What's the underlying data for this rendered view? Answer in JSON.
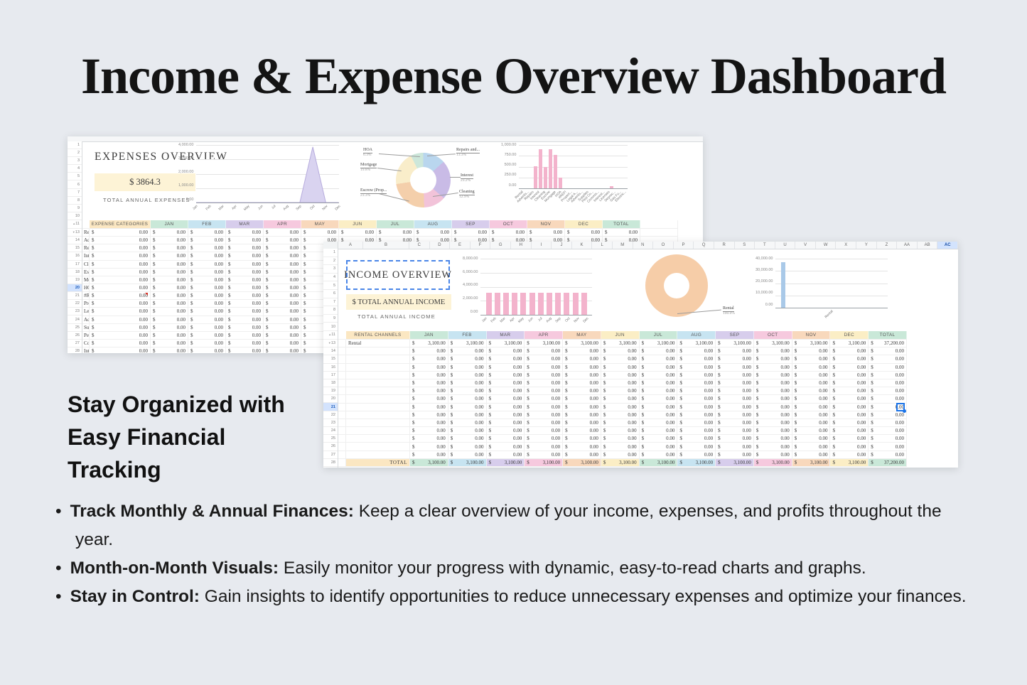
{
  "page": {
    "background": "#e7eaef",
    "title": "Income & Expense Overview Dashboard",
    "headline": "Stay Organized with\nEasy Financial\nTracking",
    "bullet_glyph": "•",
    "bullets": [
      {
        "lead": "Track Monthly & Annual Finances:",
        "body": " Keep a clear overview of your income, expenses, and profits throughout the year."
      },
      {
        "lead": "Month-on-Month Visuals:",
        "body": " Easily monitor your progress with dynamic, easy-to-read charts and graphs."
      },
      {
        "lead": "Stay in Control:",
        "body": " Gain insights to identify opportunities to reduce unnecessary expenses and optimize your finances."
      }
    ]
  },
  "icons": {
    "collapse_up": "▴",
    "collapse_down": "▾"
  },
  "colors": {
    "page_bg": "#e7eaef",
    "accent_blue": "#1a73e8",
    "selection_dash_blue": "#4a86e8",
    "highlight_row_bg": "#d3e3fd",
    "yellow_box_bg": "#fdf3d6",
    "comment_marker": "#d93025",
    "pink_bar": "#f3b3cc",
    "blue_bar": "#a9c9e8",
    "area_fill": "#d9d3f0",
    "area_stroke": "#b6abdd",
    "month_header_colors": [
      "#fbe7c2",
      "#c9e8d8",
      "#c7e4f1",
      "#d7cdec",
      "#f6c9de",
      "#f8d8bc",
      "#fbeec5",
      "#c9e8d8",
      "#c7e4f1",
      "#d7cdec",
      "#f6c9de",
      "#f8d8bc",
      "#fbeec5",
      "#c9e8d8"
    ]
  },
  "expense_sheet": {
    "title": "EXPENSES OVERVIEW",
    "total_value": "$ 3864.3",
    "total_label": "TOTAL ANNUAL EXPENSES",
    "row_numbers": [
      "1",
      "2",
      "3",
      "4",
      "5",
      "6",
      "7",
      "8",
      "9",
      "10",
      "11",
      "13",
      "14",
      "15",
      "16",
      "17",
      "18",
      "19",
      "20",
      "21",
      "22",
      "23",
      "24",
      "25",
      "26",
      "27",
      "28"
    ],
    "highlighted_row": "20",
    "area_chart": {
      "type": "area",
      "yticks": [
        "4,000.00",
        "3,000.00",
        "2,000.00",
        "1,000.00",
        "0.00"
      ],
      "ymax": 4000,
      "x": [
        "Jan",
        "Feb",
        "Mar",
        "Apr",
        "May",
        "Jun",
        "Jul",
        "Aug",
        "Sep",
        "Oct",
        "Nov",
        "Dec"
      ],
      "values": [
        0,
        0,
        0,
        0,
        0,
        0,
        0,
        0,
        0,
        3864,
        0,
        0
      ],
      "fill": "#d9d3f0",
      "stroke": "#b6abdd"
    },
    "donut_chart": {
      "type": "pie",
      "segments": [
        {
          "label": "Repairs and...",
          "pct_label": "13.3%",
          "pct": 13.3,
          "color": "#b9d6ee"
        },
        {
          "label": "Interest",
          "pct_label": "23.2%",
          "pct": 23.2,
          "color": "#c9bbe6"
        },
        {
          "label": "Cleaning",
          "pct_label": "12.9%",
          "pct": 12.9,
          "color": "#f2c3d9"
        },
        {
          "label": "Escrow (Prop...",
          "pct_label": "23.3%",
          "pct": 23.3,
          "color": "#f4cfab"
        },
        {
          "label": "Mortgage",
          "pct_label": "19.8%",
          "pct": 19.8,
          "color": "#f9edca"
        },
        {
          "label": "HOA",
          "pct_label": "6.3%",
          "pct": 6.3,
          "color": "#cde7da"
        }
      ]
    },
    "bar_chart": {
      "type": "bar",
      "yticks": [
        "1,000.00",
        "750.00",
        "500.00",
        "250.00",
        "0.00"
      ],
      "ymax": 1000,
      "categories": [
        "Rental",
        "Advertis...",
        "Repairs",
        "Interest",
        "Cleaning",
        "Escrow",
        "Mortgage",
        "HOA",
        "#REF!",
        "Propert...",
        "Legal A...",
        "Advertis...",
        "Supplies",
        "Pest Co...",
        "Commis...",
        "Interest...",
        "Licenses",
        "Deprec...",
        "Gas Fu...",
        "Electric..."
      ],
      "values": [
        0,
        0,
        514,
        897,
        499,
        900,
        766,
        243,
        0,
        0,
        0,
        0,
        0,
        0,
        0,
        0,
        0,
        45,
        0,
        0
      ],
      "color": "#f3b3cc"
    },
    "table": {
      "header": [
        "EXPENSE CATEGORIES",
        "JAN",
        "FEB",
        "MAR",
        "APR",
        "MAY",
        "JUN",
        "JUL",
        "AUG",
        "SEP",
        "OCT",
        "NOV",
        "DEC",
        "TOTAL"
      ],
      "categories": [
        "Rental management",
        "Advertising",
        "Repairs and Maintainence",
        "Interest",
        "Cleaning",
        "Escrow (Property Taxes an",
        "Mortgage",
        "HOA",
        "#REF!",
        "Property Management Fees",
        "Legal And Professional Fee",
        "Advertising",
        "Supplies and Materials",
        "Pest Control",
        "Commision and Finders Fee",
        "Interest and Fees on Buisn"
      ],
      "currency": "$",
      "zero_value": "0.00"
    }
  },
  "income_sheet": {
    "columns": [
      "A",
      "B",
      "C",
      "D",
      "E",
      "F",
      "G",
      "H",
      "I",
      "J",
      "K",
      "L",
      "M",
      "N",
      "O",
      "P",
      "Q",
      "R",
      "S",
      "T",
      "U",
      "V",
      "W",
      "X",
      "Y",
      "Z",
      "AA",
      "AB",
      "AC"
    ],
    "selected_column": "AC",
    "title": "INCOME OVERVIEW",
    "total_value": "$ TOTAL ANNUAL INCOME",
    "total_label": "TOTAL ANNUAL INCOME",
    "row_numbers": [
      "1",
      "2",
      "3",
      "4",
      "5",
      "6",
      "7",
      "8",
      "9",
      "10",
      "11",
      "13",
      "14",
      "15",
      "16",
      "17",
      "18",
      "19",
      "20",
      "21",
      "22",
      "23",
      "24",
      "25",
      "26",
      "27",
      "28"
    ],
    "highlighted_row": "21",
    "bar_chart_monthly": {
      "type": "bar",
      "yticks": [
        "8,000.00",
        "6,000.00",
        "4,000.00",
        "2,000.00",
        "0.00"
      ],
      "ymax": 8000,
      "categories": [
        "Jan",
        "Feb",
        "Mar",
        "Apr",
        "May",
        "Jun",
        "Jul",
        "Aug",
        "Sep",
        "Oct",
        "Nov",
        "Dec"
      ],
      "values": [
        3100,
        3100,
        3100,
        3100,
        3100,
        3100,
        3100,
        3100,
        3100,
        3100,
        3100,
        3100
      ],
      "color": "#f3b3cc"
    },
    "donut_chart": {
      "type": "pie",
      "segments": [
        {
          "label": "Rental",
          "pct_label": "100.0%",
          "pct": 100,
          "color": "#f6cda8"
        }
      ]
    },
    "bar_chart_channels": {
      "type": "bar",
      "yticks": [
        "40,000.00",
        "30,000.00",
        "20,000.00",
        "10,000.00",
        "0.00"
      ],
      "ymax": 40000,
      "categories": [
        "Rental"
      ],
      "values": [
        37200
      ],
      "color": "#a9c9e8"
    },
    "table": {
      "header": [
        "RENTAL CHANNELS",
        "JAN",
        "FEB",
        "MAR",
        "APR",
        "MAY",
        "JUN",
        "JUL",
        "AUG",
        "SEP",
        "OCT",
        "NOV",
        "DEC",
        "TOTAL"
      ],
      "first_row_label": "Rental",
      "monthly_value": "3,100.00",
      "annual_total": "37,200.00",
      "zero_value": "0.00",
      "currency": "$",
      "total_label": "TOTAL",
      "empty_rows": 14
    }
  }
}
